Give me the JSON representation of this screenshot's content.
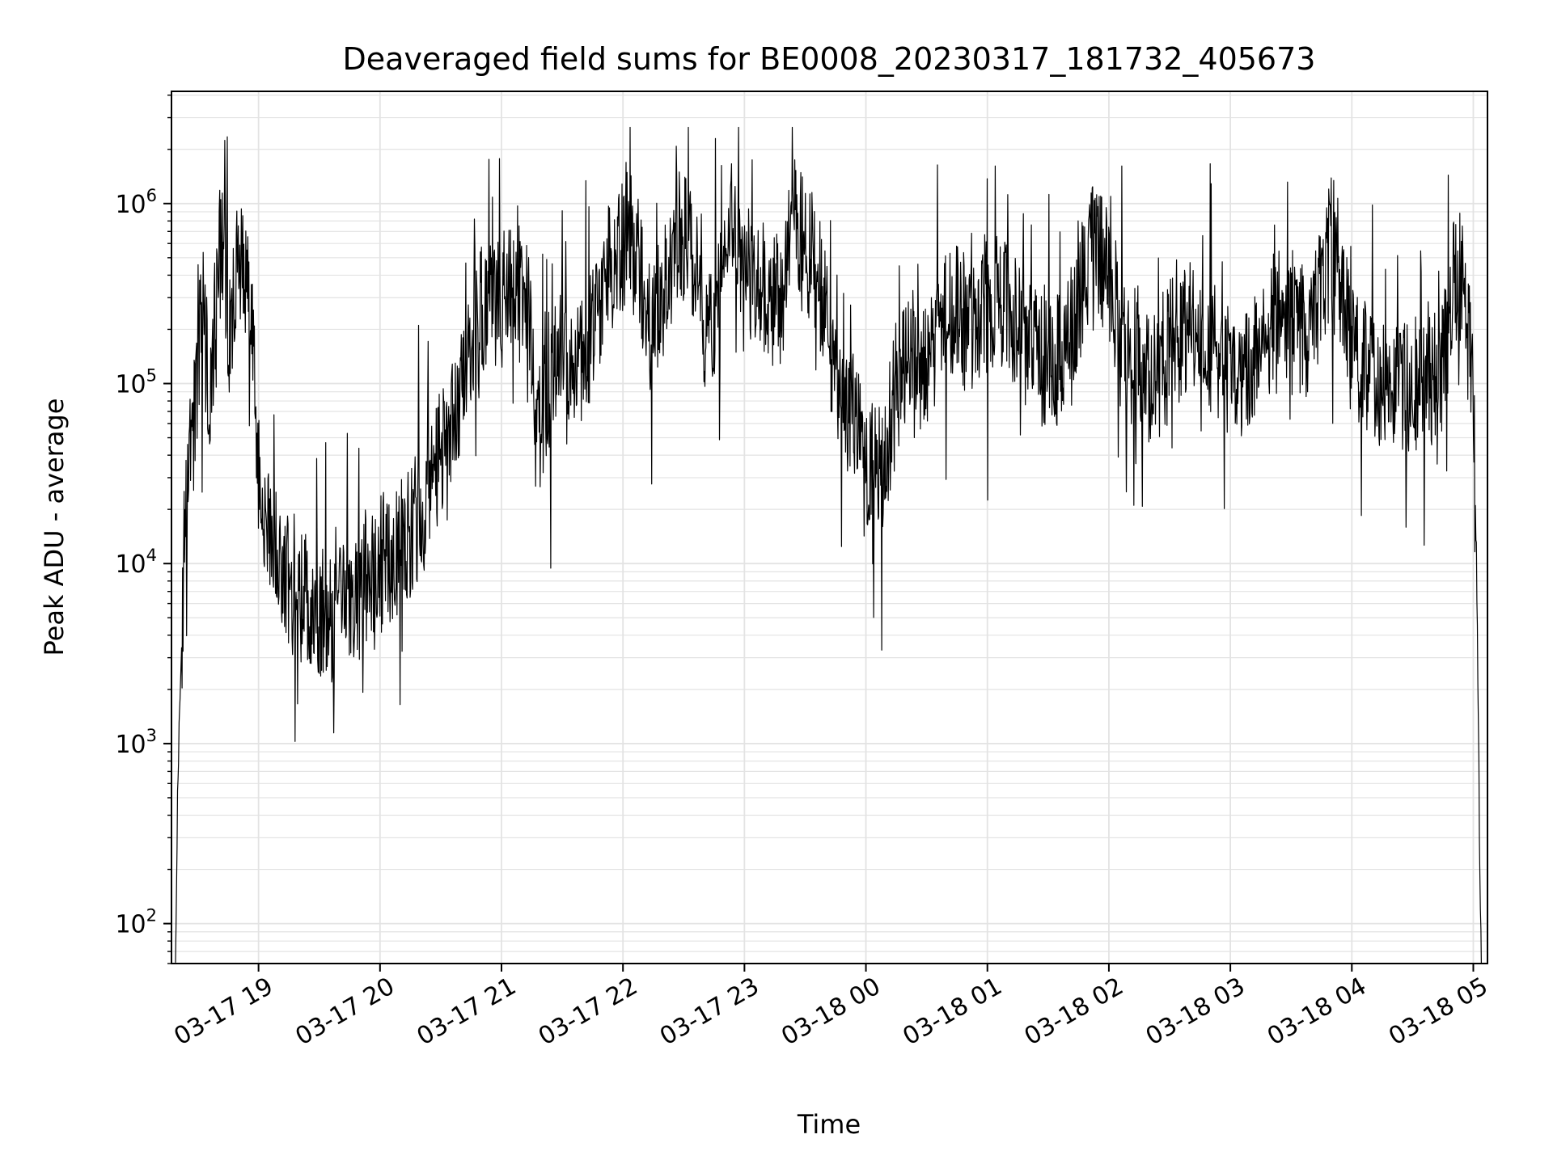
{
  "chart_data": {
    "type": "line",
    "title": "Deaveraged field sums for BE0008_20230317_181732_405673",
    "xlabel": "Time",
    "ylabel": "Peak ADU - average",
    "yscale": "log",
    "ylim": [
      60,
      4200000
    ],
    "xlim": [
      "03-17 18:17",
      "03-18 05:07"
    ],
    "grid": true,
    "line_color": "#000000",
    "grid_color": "#e3e3e3",
    "xticks": [
      {
        "label": "03-17 19",
        "t": 60
      },
      {
        "label": "03-17 20",
        "t": 120
      },
      {
        "label": "03-17 21",
        "t": 180
      },
      {
        "label": "03-17 22",
        "t": 240
      },
      {
        "label": "03-17 23",
        "t": 300
      },
      {
        "label": "03-18 00",
        "t": 360
      },
      {
        "label": "03-18 01",
        "t": 420
      },
      {
        "label": "03-18 02",
        "t": 480
      },
      {
        "label": "03-18 03",
        "t": 540
      },
      {
        "label": "03-18 04",
        "t": 600
      },
      {
        "label": "03-18 05",
        "t": 660
      }
    ],
    "yticks": [
      {
        "base": "10",
        "exp": "2",
        "value": 100
      },
      {
        "base": "10",
        "exp": "3",
        "value": 1000
      },
      {
        "base": "10",
        "exp": "4",
        "value": 10000
      },
      {
        "base": "10",
        "exp": "5",
        "value": 100000
      },
      {
        "base": "10",
        "exp": "6",
        "value": 1000000
      }
    ],
    "series": [
      {
        "anchors": [
          [
            "03-17 18:19",
            60
          ],
          [
            "03-17 18:20",
            500
          ],
          [
            "03-17 18:21",
            1500
          ],
          [
            "03-17 18:23",
            10000
          ],
          [
            "03-17 18:25",
            25000
          ],
          [
            "03-17 18:28",
            60000
          ],
          [
            "03-17 18:31",
            200000
          ],
          [
            "03-17 18:34",
            150000
          ],
          [
            "03-17 18:36",
            80000
          ],
          [
            "03-17 18:39",
            300000
          ],
          [
            "03-17 18:42",
            700000
          ],
          [
            "03-17 18:44",
            400000
          ],
          [
            "03-17 18:46",
            150000
          ],
          [
            "03-17 18:50",
            500000
          ],
          [
            "03-17 18:53",
            500000
          ],
          [
            "03-17 18:56",
            250000
          ],
          [
            "03-17 19:00",
            30000
          ],
          [
            "03-17 19:06",
            15000
          ],
          [
            "03-17 19:15",
            8000
          ],
          [
            "03-17 19:25",
            6000
          ],
          [
            "03-17 19:35",
            5000
          ],
          [
            "03-17 19:45",
            6000
          ],
          [
            "03-17 19:55",
            8000
          ],
          [
            "03-17 20:05",
            10000
          ],
          [
            "03-17 20:15",
            15000
          ],
          [
            "03-17 20:25",
            25000
          ],
          [
            "03-17 20:32",
            50000
          ],
          [
            "03-17 20:40",
            100000
          ],
          [
            "03-17 20:50",
            250000
          ],
          [
            "03-17 21:00",
            300000
          ],
          [
            "03-17 21:08",
            400000
          ],
          [
            "03-17 21:13",
            300000
          ],
          [
            "03-17 21:17",
            50000
          ],
          [
            "03-17 21:22",
            80000
          ],
          [
            "03-17 21:30",
            150000
          ],
          [
            "03-17 21:38",
            120000
          ],
          [
            "03-17 21:45",
            200000
          ],
          [
            "03-17 21:52",
            400000
          ],
          [
            "03-17 22:00",
            600000
          ],
          [
            "03-17 22:08",
            500000
          ],
          [
            "03-17 22:13",
            200000
          ],
          [
            "03-17 22:20",
            300000
          ],
          [
            "03-17 22:28",
            700000
          ],
          [
            "03-17 22:35",
            500000
          ],
          [
            "03-17 22:40",
            200000
          ],
          [
            "03-17 22:48",
            300000
          ],
          [
            "03-17 22:55",
            900000
          ],
          [
            "03-17 23:02",
            400000
          ],
          [
            "03-17 23:10",
            250000
          ],
          [
            "03-17 23:18",
            300000
          ],
          [
            "03-17 23:25",
            800000
          ],
          [
            "03-17 23:33",
            500000
          ],
          [
            "03-17 23:40",
            300000
          ],
          [
            "03-17 23:45",
            100000
          ],
          [
            "03-17 23:53",
            60000
          ],
          [
            "03-18 00:00",
            40000
          ],
          [
            "03-18 00:08",
            30000
          ],
          [
            "03-18 00:15",
            100000
          ],
          [
            "03-18 00:23",
            150000
          ],
          [
            "03-18 00:30",
            120000
          ],
          [
            "03-18 00:38",
            200000
          ],
          [
            "03-18 00:45",
            250000
          ],
          [
            "03-18 00:53",
            200000
          ],
          [
            "03-18 01:00",
            250000
          ],
          [
            "03-18 01:08",
            300000
          ],
          [
            "03-18 01:15",
            200000
          ],
          [
            "03-18 01:23",
            150000
          ],
          [
            "03-18 01:30",
            120000
          ],
          [
            "03-18 01:38",
            150000
          ],
          [
            "03-18 01:45",
            250000
          ],
          [
            "03-18 01:53",
            600000
          ],
          [
            "03-18 02:00",
            400000
          ],
          [
            "03-18 02:08",
            150000
          ],
          [
            "03-18 02:15",
            120000
          ],
          [
            "03-18 02:23",
            100000
          ],
          [
            "03-18 02:30",
            150000
          ],
          [
            "03-18 02:38",
            200000
          ],
          [
            "03-18 02:45",
            200000
          ],
          [
            "03-18 02:53",
            150000
          ],
          [
            "03-18 03:00",
            120000
          ],
          [
            "03-18 03:08",
            120000
          ],
          [
            "03-18 03:15",
            150000
          ],
          [
            "03-18 03:23",
            250000
          ],
          [
            "03-18 03:30",
            200000
          ],
          [
            "03-18 03:38",
            200000
          ],
          [
            "03-18 03:45",
            400000
          ],
          [
            "03-18 03:53",
            500000
          ],
          [
            "03-18 04:00",
            150000
          ],
          [
            "03-18 04:08",
            120000
          ],
          [
            "03-18 04:15",
            100000
          ],
          [
            "03-18 04:23",
            100000
          ],
          [
            "03-18 04:30",
            100000
          ],
          [
            "03-18 04:38",
            100000
          ],
          [
            "03-18 04:45",
            120000
          ],
          [
            "03-18 04:50",
            350000
          ],
          [
            "03-18 04:55",
            400000
          ],
          [
            "03-18 05:00",
            80000
          ],
          [
            "03-18 05:02",
            5000
          ],
          [
            "03-18 05:03",
            300
          ],
          [
            "03-18 05:04",
            60
          ]
        ]
      }
    ]
  }
}
